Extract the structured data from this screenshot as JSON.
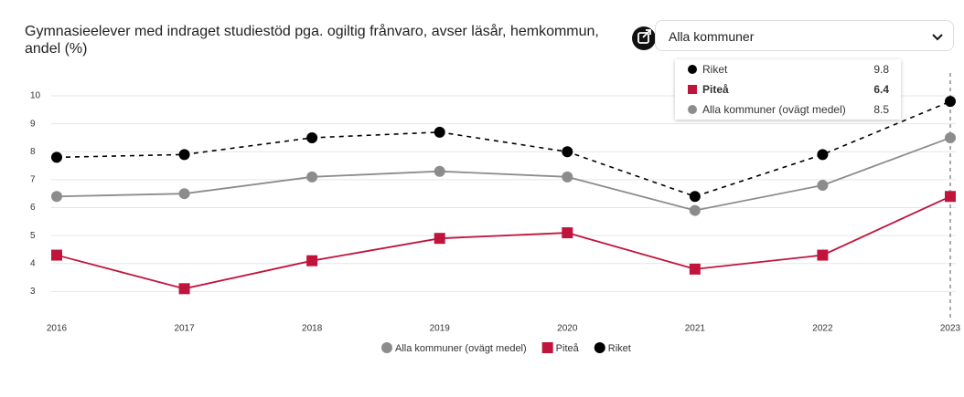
{
  "chart_data": {
    "type": "line",
    "title": "Gymnasieelever med indraget studiestöd pga. ogiltig frånvaro, avser läsår, hemkommun, andel (%)",
    "categories": [
      "2016",
      "2017",
      "2018",
      "2019",
      "2020",
      "2021",
      "2022",
      "2023"
    ],
    "series": [
      {
        "name": "Alla kommuner (ovägt medel)",
        "color": "#8c8c8c",
        "marker": "circle",
        "values": [
          6.4,
          6.5,
          7.1,
          7.3,
          7.1,
          5.9,
          6.8,
          8.5
        ]
      },
      {
        "name": "Piteå",
        "color": "#c0143c",
        "marker": "square",
        "values": [
          4.3,
          3.1,
          4.1,
          4.9,
          5.1,
          3.8,
          4.3,
          6.4
        ]
      },
      {
        "name": "Riket",
        "color": "#000000",
        "marker": "circle",
        "dashed": true,
        "values": [
          7.8,
          7.9,
          8.5,
          8.7,
          8.0,
          6.4,
          7.9,
          9.8
        ]
      }
    ],
    "ylim": [
      2,
      10.5
    ],
    "yticks": [
      3,
      4,
      5,
      6,
      7,
      8,
      9,
      10
    ],
    "grid": true,
    "legend": "bottom"
  },
  "dropdown": {
    "selected": "Alla kommuner"
  }
}
